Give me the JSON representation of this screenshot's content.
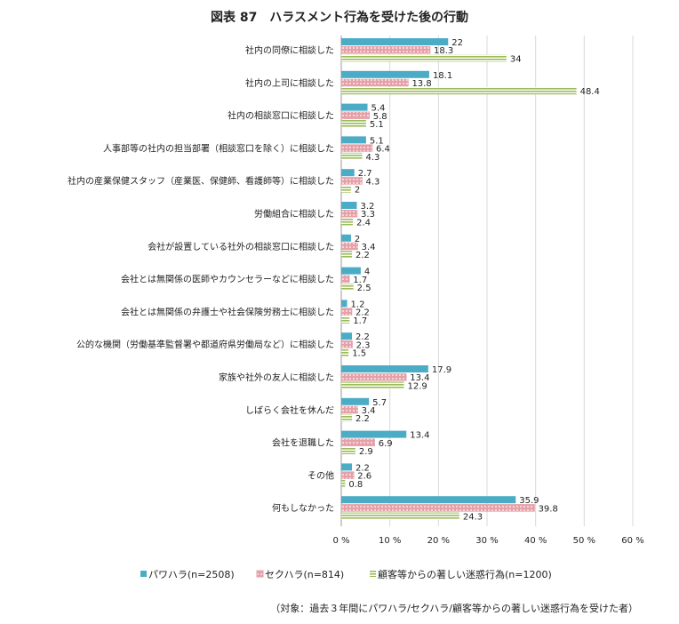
{
  "chart_data": {
    "type": "bar",
    "orientation": "horizontal",
    "title": "図表 87　ハラスメント行為を受けた後の行動",
    "categories": [
      "社内の同僚に相談した",
      "社内の上司に相談した",
      "社内の相談窓口に相談した",
      "人事部等の社内の担当部署（相談窓口を除く）に相談した",
      "社内の産業保健スタッフ（産業医、保健師、看護師等）に相談した",
      "労働組合に相談した",
      "会社が設置している社外の相談窓口に相談した",
      "会社とは無関係の医師やカウンセラーなどに相談した",
      "会社とは無関係の弁護士や社会保険労務士に相談した",
      "公的な機関（労働基準監督署や都道府県労働局など）に相談した",
      "家族や社外の友人に相談した",
      "しばらく会社を休んだ",
      "会社を退職した",
      "その他",
      "何もしなかった"
    ],
    "series": [
      {
        "name": "パワハラ(n=2508)",
        "color": "#4bacc6",
        "pattern": "solid",
        "values": [
          22.0,
          18.1,
          5.4,
          5.1,
          2.7,
          3.2,
          2.0,
          4.0,
          1.2,
          2.2,
          17.9,
          5.7,
          13.4,
          2.2,
          35.9
        ]
      },
      {
        "name": "セクハラ(n=814)",
        "color": "#e6a0a8",
        "pattern": "dots",
        "values": [
          18.3,
          13.8,
          5.8,
          6.4,
          4.3,
          3.3,
          3.4,
          1.7,
          2.2,
          2.3,
          13.4,
          3.4,
          6.9,
          2.6,
          39.8
        ]
      },
      {
        "name": "顧客等からの著しい迷惑行為(n=1200)",
        "color": "#9bbb59",
        "pattern": "horizontal-stripes",
        "values": [
          34.0,
          48.4,
          5.1,
          4.3,
          2.0,
          2.4,
          2.2,
          2.5,
          1.7,
          1.5,
          12.9,
          2.2,
          2.9,
          0.8,
          24.3
        ]
      }
    ],
    "xlim": [
      0,
      60
    ],
    "xticks": [
      "0 %",
      "10 %",
      "20 %",
      "30 %",
      "40 %",
      "50 %",
      "60 %"
    ],
    "grid": true,
    "legend_position": "bottom",
    "note": "（対象：過去３年間にパワハラ/セクハラ/顧客等からの著しい迷惑行為を受けた者）"
  }
}
